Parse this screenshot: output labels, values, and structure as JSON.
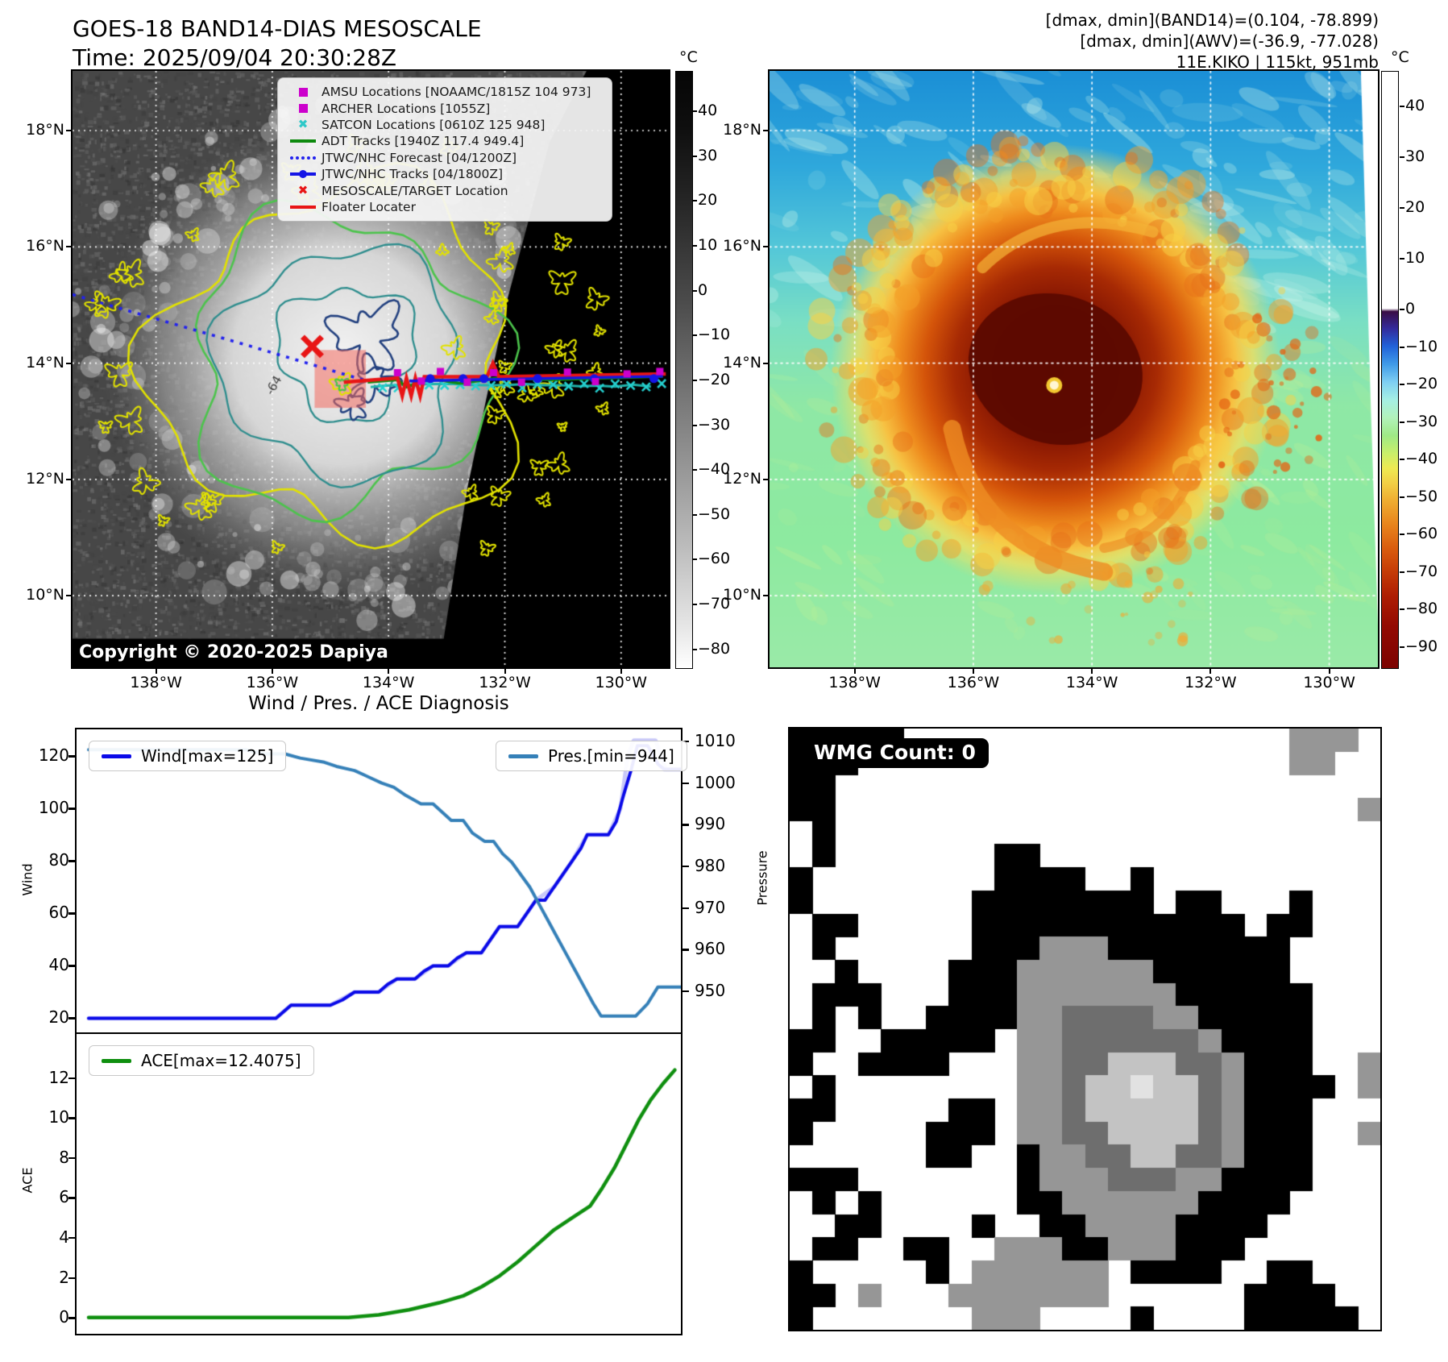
{
  "header": {
    "left_title": "GOES-18 BAND14-DIAS MESOSCALE",
    "left_subtitle": "Time: 2025/09/04 20:30:28Z",
    "right_lines": [
      "[dmax, dmin](BAND14)=(0.104, -78.899)",
      "[dmax, dmin](AWV)=(-36.9, -77.028)",
      "11E.KIKO | 115kt, 951mb"
    ]
  },
  "band14_panel": {
    "y_ticks": [
      "18°N",
      "16°N",
      "14°N",
      "12°N",
      "10°N"
    ],
    "x_ticks": [
      "138°W",
      "136°W",
      "134°W",
      "132°W",
      "130°W"
    ],
    "copyright": "Copyright © 2020-2025 Dapiya",
    "contour_label": "-64",
    "legend": [
      {
        "marker": "square",
        "color": "#cc00cc",
        "label": "AMSU Locations [NOAAMC/1815Z 104 973]"
      },
      {
        "marker": "square",
        "color": "#cc00cc",
        "label": "ARCHER Locations [1055Z]"
      },
      {
        "marker": "x",
        "color": "#2ec8c8",
        "label": "SATCON Locations [0610Z 125 948]"
      },
      {
        "marker": "line",
        "color": "#0e8a0e",
        "label": "ADT Tracks [1940Z 117.4 949.4]"
      },
      {
        "marker": "dotted",
        "color": "#2222ee",
        "label": "JTWC/NHC Forecast [04/1200Z]"
      },
      {
        "marker": "line-dot",
        "color": "#1515e6",
        "label": "JTWC/NHC Tracks [04/1800Z]"
      },
      {
        "marker": "x",
        "color": "#e81515",
        "label": "MESOSCALE/TARGET Location"
      },
      {
        "marker": "line",
        "color": "#e81515",
        "label": "Floater Locater"
      }
    ],
    "colorbar": {
      "unit": "°C",
      "ticks": [
        40,
        30,
        20,
        10,
        0,
        -10,
        -20,
        -30,
        -40,
        -50,
        -60,
        -70,
        -80
      ]
    }
  },
  "awv_panel": {
    "y_ticks": [
      "18°N",
      "16°N",
      "14°N",
      "12°N",
      "10°N"
    ],
    "x_ticks": [
      "138°W",
      "136°W",
      "134°W",
      "132°W",
      "130°W"
    ],
    "colorbar": {
      "unit": "°C",
      "ticks": [
        40,
        30,
        20,
        10,
        0,
        -10,
        -20,
        -30,
        -40,
        -50,
        -60,
        -70,
        -80,
        -90
      ]
    }
  },
  "wmg_panel": {
    "label": "WMG Count: 0",
    "palette": {
      ".": "#ffffff",
      "K": "#000000",
      "G": "#969696",
      "D": "#6e6e6e",
      "L": "#c3c3c3",
      "W": "#e2e2e2"
    },
    "grid": [
      "KKKKK.................GGG.",
      "KKK...................GG..",
      "KK........................",
      "KK.......................G",
      ".K........................",
      ".K.......KK...............",
      "K........KKKK..K..........",
      "K.......KKKKKKKK.KK...K...",
      ".KK.....KKKKKKKKKKKK.KK...",
      ".K......KKKGGGKKKKKKKK....",
      "..K....KKKGGGGGGKKKKKK....",
      ".KKK...KKKGGGGGGGKKKKKK...",
      ".K.K..KKKKGGDDDDGGKKKKK...",
      "KK..KKKKK.GGDDDDDDGKKKK...",
      "K..KKKK...GGDDLLLDDGKKK..G",
      ".K........GGDLLWLLDGKKKK.G",
      "KK.....KK.GGDLLLLLDGKKK...",
      "K.....KKK.GGDDLLLLDGKKK..G",
      "......KK..KGGDDLLDDGKKK...",
      "KKK.......KGGGDDDGGKKKK...",
      ".K.K......KKGGGGGGKKKK....",
      "..KK....K..KKGGGGKKKK.....",
      ".KK..KK..GGGKKGGGKKK......",
      "K.....K.GGGGGG.KKKK..KK...",
      "KK.G...GGGGGGG......KKKK..",
      "K.......GGG....K....KKKKK."
    ]
  },
  "chart_data": [
    {
      "type": "line",
      "title": "Wind / Pres. / ACE Diagnosis",
      "ylabel": "Wind",
      "y2label": "Pressure",
      "xlim": [
        0,
        1
      ],
      "ylim": [
        14,
        130.2
      ],
      "y2lim": [
        939.7,
        1012.9
      ],
      "y_ticks": [
        120,
        100,
        80,
        60,
        40,
        20
      ],
      "y2_ticks": [
        1010,
        1000,
        990,
        980,
        970,
        960,
        950
      ],
      "grid": false,
      "legend": [
        {
          "label": "Wind[max=125]",
          "color": "#0a0ae8",
          "position": "upper-left"
        },
        {
          "label": "Pres.[min=944]",
          "color": "#3580b8",
          "position": "upper-right"
        }
      ],
      "series": [
        {
          "name": "wind_shadow",
          "color": "#c8c8f8",
          "width": 5,
          "axis": "y1",
          "points": [
            [
              0.02,
              20
            ],
            [
              0.33,
              20
            ],
            [
              0.355,
              25
            ],
            [
              0.42,
              25
            ],
            [
              0.46,
              30
            ],
            [
              0.5,
              30
            ],
            [
              0.53,
              35
            ],
            [
              0.56,
              35
            ],
            [
              0.59,
              40
            ],
            [
              0.615,
              40
            ],
            [
              0.645,
              45
            ],
            [
              0.67,
              45
            ],
            [
              0.7,
              55
            ],
            [
              0.73,
              55
            ],
            [
              0.76,
              65
            ],
            [
              0.79,
              70
            ],
            [
              0.82,
              80
            ],
            [
              0.845,
              90
            ],
            [
              0.88,
              90
            ],
            [
              0.9,
              100
            ],
            [
              0.912,
              120
            ],
            [
              0.922,
              126
            ],
            [
              0.958,
              126
            ],
            [
              0.975,
              115
            ],
            [
              1,
              115
            ]
          ]
        },
        {
          "name": "wind",
          "color": "#0a0ae8",
          "width": 4,
          "axis": "y1",
          "points": [
            [
              0.02,
              20
            ],
            [
              0.33,
              20
            ],
            [
              0.355,
              25
            ],
            [
              0.42,
              25
            ],
            [
              0.44,
              27
            ],
            [
              0.46,
              30
            ],
            [
              0.5,
              30
            ],
            [
              0.515,
              33
            ],
            [
              0.53,
              35
            ],
            [
              0.56,
              35
            ],
            [
              0.575,
              38
            ],
            [
              0.59,
              40
            ],
            [
              0.615,
              40
            ],
            [
              0.63,
              43
            ],
            [
              0.645,
              45
            ],
            [
              0.67,
              45
            ],
            [
              0.685,
              50
            ],
            [
              0.7,
              55
            ],
            [
              0.73,
              55
            ],
            [
              0.745,
              60
            ],
            [
              0.76,
              65
            ],
            [
              0.775,
              65
            ],
            [
              0.79,
              70
            ],
            [
              0.805,
              75
            ],
            [
              0.82,
              80
            ],
            [
              0.835,
              85
            ],
            [
              0.845,
              90
            ],
            [
              0.88,
              90
            ],
            [
              0.893,
              95
            ],
            [
              0.905,
              105
            ],
            [
              0.918,
              115
            ],
            [
              0.928,
              124
            ],
            [
              0.945,
              124
            ],
            [
              0.962,
              117
            ],
            [
              0.972,
              115
            ],
            [
              1,
              115
            ]
          ]
        },
        {
          "name": "pressure",
          "color": "#3580b8",
          "width": 4,
          "axis": "y2",
          "points": [
            [
              0.02,
              1008
            ],
            [
              0.28,
              1008
            ],
            [
              0.31,
              1007
            ],
            [
              0.345,
              1007
            ],
            [
              0.37,
              1006
            ],
            [
              0.41,
              1005
            ],
            [
              0.43,
              1004
            ],
            [
              0.46,
              1003
            ],
            [
              0.475,
              1002
            ],
            [
              0.49,
              1001
            ],
            [
              0.505,
              1000
            ],
            [
              0.525,
              999
            ],
            [
              0.545,
              997
            ],
            [
              0.57,
              995
            ],
            [
              0.59,
              995
            ],
            [
              0.605,
              993
            ],
            [
              0.62,
              991
            ],
            [
              0.64,
              991
            ],
            [
              0.655,
              988
            ],
            [
              0.675,
              986
            ],
            [
              0.69,
              986
            ],
            [
              0.705,
              983
            ],
            [
              0.72,
              981
            ],
            [
              0.735,
              978
            ],
            [
              0.75,
              975
            ],
            [
              0.765,
              971
            ],
            [
              0.78,
              967
            ],
            [
              0.795,
              963
            ],
            [
              0.81,
              959
            ],
            [
              0.825,
              955
            ],
            [
              0.84,
              951
            ],
            [
              0.855,
              947
            ],
            [
              0.868,
              944
            ],
            [
              0.925,
              944
            ],
            [
              0.945,
              947
            ],
            [
              0.962,
              951
            ],
            [
              1,
              951
            ]
          ]
        }
      ]
    },
    {
      "type": "line",
      "ylabel": "ACE",
      "xlim": [
        0,
        1
      ],
      "ylim": [
        -0.8,
        14.2
      ],
      "y_ticks": [
        12,
        10,
        8,
        6,
        4,
        2,
        0
      ],
      "grid": false,
      "legend": [
        {
          "label": "ACE[max=12.4075]",
          "color": "#0f8f0f",
          "position": "upper-left"
        }
      ],
      "series": [
        {
          "name": "ace",
          "color": "#0f8f0f",
          "width": 4.5,
          "axis": "y1",
          "points": [
            [
              0.02,
              0.02
            ],
            [
              0.45,
              0.02
            ],
            [
              0.5,
              0.15
            ],
            [
              0.55,
              0.4
            ],
            [
              0.6,
              0.75
            ],
            [
              0.64,
              1.1
            ],
            [
              0.67,
              1.55
            ],
            [
              0.7,
              2.1
            ],
            [
              0.73,
              2.8
            ],
            [
              0.76,
              3.6
            ],
            [
              0.79,
              4.4
            ],
            [
              0.82,
              5.0
            ],
            [
              0.85,
              5.6
            ],
            [
              0.87,
              6.5
            ],
            [
              0.89,
              7.5
            ],
            [
              0.91,
              8.7
            ],
            [
              0.93,
              9.9
            ],
            [
              0.95,
              10.9
            ],
            [
              0.97,
              11.7
            ],
            [
              0.99,
              12.4
            ]
          ]
        }
      ]
    }
  ]
}
